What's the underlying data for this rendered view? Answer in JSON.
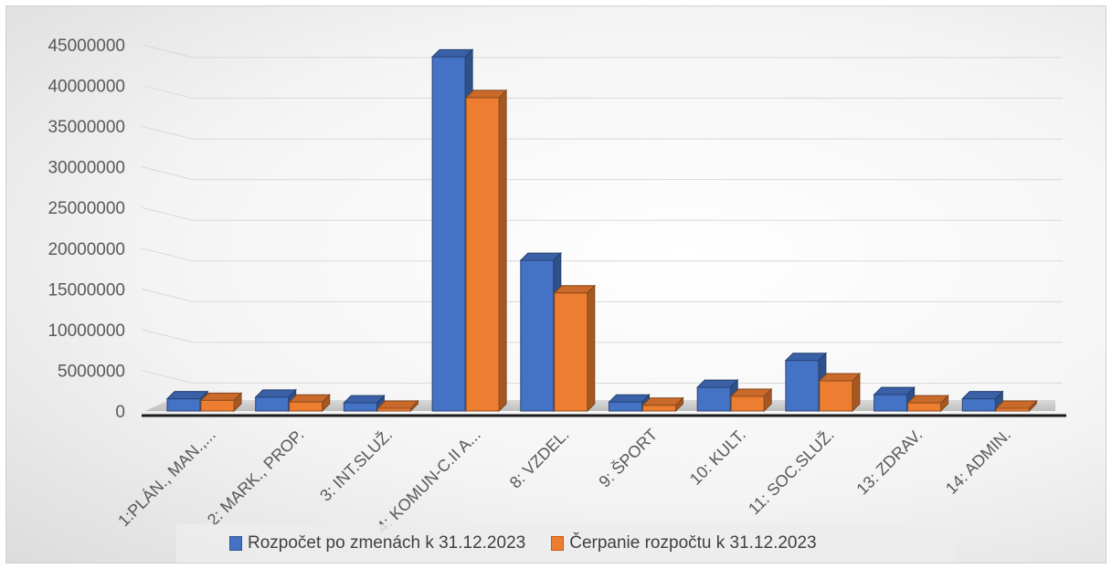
{
  "chart_data": {
    "type": "bar",
    "title": "",
    "xlabel": "",
    "ylabel": "",
    "ylim": [
      0,
      45000000
    ],
    "yticks": [
      0,
      5000000,
      10000000,
      15000000,
      20000000,
      25000000,
      30000000,
      35000000,
      40000000,
      45000000
    ],
    "categories": [
      "1:PLÁN., MAN.,...",
      "2: MARK., PROP.",
      "3: INT.SLUŽ.",
      "4: KOMUN-C.II A...",
      "8: VZDEL.",
      "9: ŠPORT",
      "10: KULT.",
      "11: SOC.SLUŽ.",
      "13: ZDRAV.",
      "14: ADMIN."
    ],
    "series": [
      {
        "name": "Rozpočet po zmenách k 31.12.2023",
        "color": "#4472C4",
        "values": [
          1500000,
          1700000,
          1000000,
          43500000,
          18500000,
          1100000,
          2900000,
          6200000,
          2000000,
          1500000
        ]
      },
      {
        "name": "Čerpanie rozpočtu k 31.12.2023",
        "color": "#ED7D31",
        "values": [
          1300000,
          1100000,
          200000,
          38500000,
          14500000,
          700000,
          1800000,
          3700000,
          1000000,
          100000
        ]
      }
    ],
    "grid": true,
    "legend_position": "bottom"
  }
}
